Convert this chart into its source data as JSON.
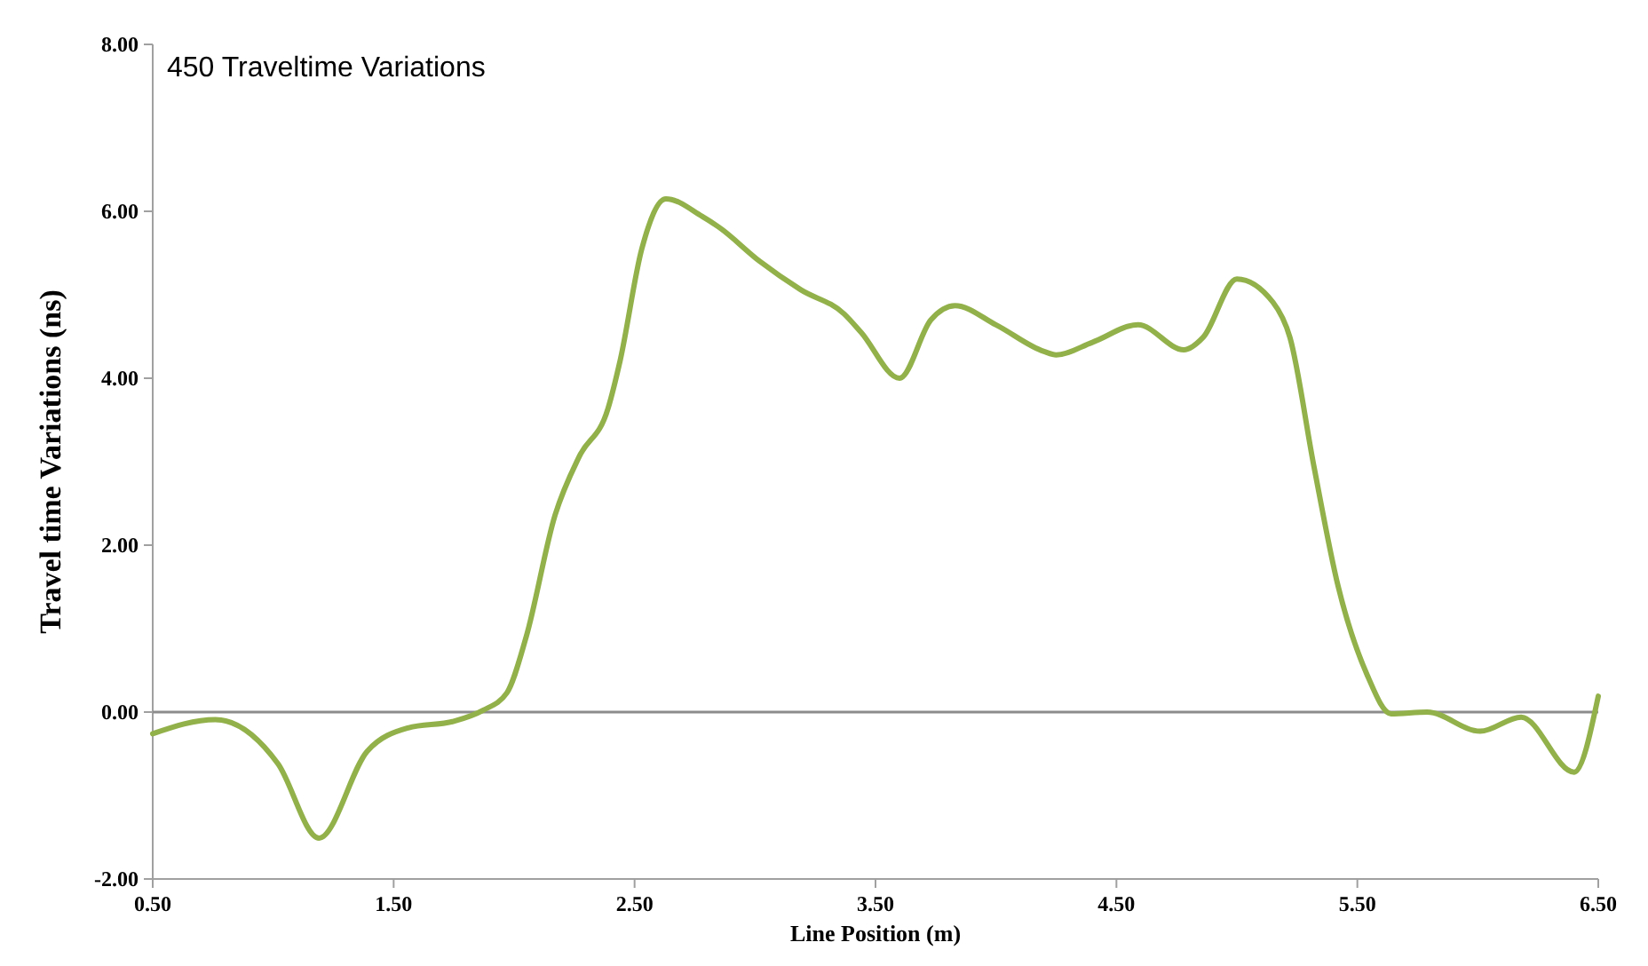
{
  "chart_data": {
    "type": "line",
    "title": "450 Traveltime Variations",
    "xlabel": "Line Position (m)",
    "ylabel": "Travel time Variations (ns)",
    "x": [
      0.5,
      0.76,
      1.02,
      1.19,
      1.39,
      1.56,
      1.75,
      1.87,
      1.97,
      2.05,
      2.17,
      2.27,
      2.39,
      2.44,
      2.53,
      2.63,
      2.78,
      2.85,
      3.02,
      3.19,
      3.37,
      3.44,
      3.6,
      3.73,
      3.83,
      4.0,
      4.2,
      4.25,
      4.4,
      4.59,
      4.78,
      4.86,
      5.0,
      5.15,
      5.22,
      5.32,
      5.42,
      5.54,
      5.64,
      5.79,
      6.01,
      6.18,
      6.4,
      6.5
    ],
    "series": [
      {
        "color": "#93b14b",
        "values": [
          -0.26,
          -0.09,
          -0.62,
          -1.51,
          -0.47,
          -0.19,
          -0.11,
          0.02,
          0.23,
          0.9,
          2.36,
          3.06,
          3.64,
          4.21,
          5.55,
          6.15,
          5.94,
          5.81,
          5.4,
          5.06,
          4.77,
          4.55,
          4.0,
          4.7,
          4.87,
          4.64,
          4.32,
          4.28,
          4.43,
          4.64,
          4.34,
          4.49,
          5.19,
          4.91,
          4.49,
          2.94,
          1.51,
          0.45,
          -0.02,
          0.0,
          -0.23,
          -0.06,
          -0.72,
          0.19
        ]
      }
    ],
    "xlim": [
      0.5,
      6.5
    ],
    "xticks": [
      {
        "value": 0.5,
        "label": "0.50"
      },
      {
        "value": 1.5,
        "label": "1.50"
      },
      {
        "value": 2.5,
        "label": "2.50"
      },
      {
        "value": 3.5,
        "label": "3.50"
      },
      {
        "value": 4.5,
        "label": "4.50"
      },
      {
        "value": 5.5,
        "label": "5.50"
      },
      {
        "value": 6.5,
        "label": "6.50"
      }
    ],
    "ylim": [
      -2,
      8
    ],
    "yticks": [
      {
        "value": -2,
        "label": "-2.00"
      },
      {
        "value": 0,
        "label": "0.00"
      },
      {
        "value": 2,
        "label": "2.00"
      },
      {
        "value": 4,
        "label": "4.00"
      },
      {
        "value": 6,
        "label": "6.00"
      },
      {
        "value": 8,
        "label": "8.00"
      }
    ],
    "ref_lines": [
      {
        "axis": "y",
        "value": 0,
        "color": "#8c8c8c"
      }
    ],
    "grid": false,
    "marker": "none",
    "line_style": "solid"
  }
}
